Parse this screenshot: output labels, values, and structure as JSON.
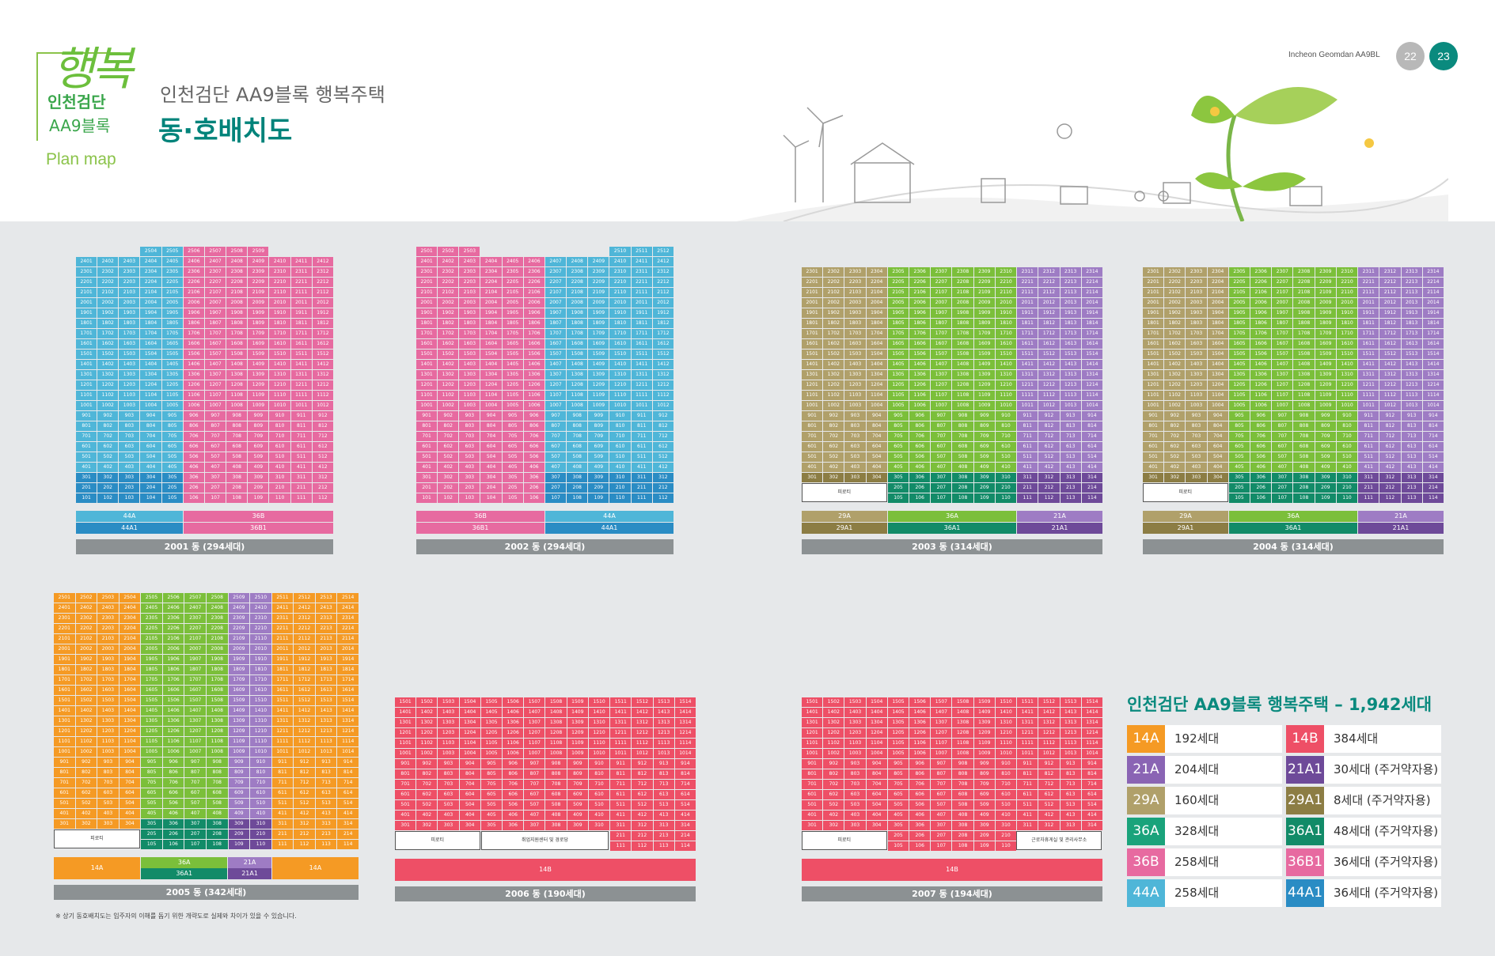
{
  "header": {
    "logo_script": "행복",
    "logo_line1": "인천검단",
    "logo_line2": "AA9블록",
    "logo_plan": "Plan map",
    "title_sub": "인천검단 AA9블록 행복주택",
    "title_main": "동·호배치도",
    "top_right_text": "Incheon Geomdan AA9BL",
    "page_left": "22",
    "page_right": "23"
  },
  "colors": {
    "14A": "#f59a24",
    "14B": "#ee4f66",
    "21A": "#8a64b4",
    "21A1": "#6e4a99",
    "29A": "#b0a06a",
    "29A1": "#8c7d44",
    "36A": "#1aa37b",
    "36A1": "#128b68",
    "36B": "#e76aa0",
    "36B1": "#e76aa0",
    "44A": "#4fb6d8",
    "44A1": "#2a8cc4"
  },
  "buildings": [
    {
      "key": "b2001",
      "label": "2001 동 (294세대)",
      "floors": [
        25,
        1
      ],
      "units": 12,
      "bars": [
        [
          {
            "t": "44A",
            "c": "c-44",
            "w": 5
          },
          {
            "t": "36B",
            "c": "c-36b",
            "w": 7
          }
        ],
        [
          {
            "t": "44A1",
            "c": "c-44b",
            "w": 5
          },
          {
            "t": "36B1",
            "c": "c-36b",
            "w": 7
          }
        ]
      ]
    },
    {
      "key": "b2002",
      "label": "2002 동 (294세대)",
      "floors": [
        25,
        1
      ],
      "units": 12,
      "bars": [
        [
          {
            "t": "36B",
            "c": "c-36b",
            "w": 6
          },
          {
            "t": "44A",
            "c": "c-44",
            "w": 6
          }
        ],
        [
          {
            "t": "36B1",
            "c": "c-36b",
            "w": 6
          },
          {
            "t": "44A1",
            "c": "c-44b",
            "w": 6
          }
        ]
      ]
    },
    {
      "key": "b2003",
      "label": "2003 동 (314세대)",
      "floors": [
        23,
        1
      ],
      "units": 14,
      "bars": [
        [
          {
            "t": "29A",
            "c": "c-29",
            "w": 4
          },
          {
            "t": "36A",
            "c": "c-36g",
            "w": 6
          },
          {
            "t": "21A",
            "c": "c-21m",
            "w": 4
          }
        ],
        [
          {
            "t": "29A1",
            "c": "c-29-d",
            "w": 4
          },
          {
            "t": "36A1",
            "c": "c-36a-d",
            "w": 6
          },
          {
            "t": "21A1",
            "c": "c-21-d",
            "w": 4
          }
        ]
      ]
    },
    {
      "key": "b2004",
      "label": "2004 동 (314세대)",
      "floors": [
        23,
        1
      ],
      "units": 14,
      "bars": [
        [
          {
            "t": "29A",
            "c": "c-29",
            "w": 4
          },
          {
            "t": "36A",
            "c": "c-36g",
            "w": 6
          },
          {
            "t": "21A",
            "c": "c-21m",
            "w": 4
          }
        ],
        [
          {
            "t": "29A1",
            "c": "c-29-d",
            "w": 4
          },
          {
            "t": "36A1",
            "c": "c-36a-d",
            "w": 6
          },
          {
            "t": "21A1",
            "c": "c-21-d",
            "w": 4
          }
        ]
      ]
    },
    {
      "key": "b2005",
      "label": "2005 동 (342세대)",
      "floors": [
        25,
        1
      ],
      "units": 14,
      "bars": [
        [
          {
            "t": "14A",
            "c": "c-14a",
            "w": 4
          },
          {
            "t": "36A",
            "c": "c-36g",
            "w": 4
          },
          {
            "t": "21A",
            "c": "c-21m",
            "w": 2
          },
          {
            "t": "14A",
            "c": "c-14a",
            "w": 4
          }
        ]
      ]
    },
    {
      "key": "b2006",
      "label": "2006 동 (190세대)",
      "floors": [
        15,
        1
      ],
      "units": 14,
      "bars": [
        [
          {
            "t": "14B",
            "c": "c-14b",
            "w": 14
          }
        ]
      ]
    },
    {
      "key": "b2007",
      "label": "2007 동 (194세대)",
      "floors": [
        15,
        1
      ],
      "units": 14,
      "bars": [
        [
          {
            "t": "14B",
            "c": "c-14b",
            "w": 14
          }
        ]
      ]
    }
  ],
  "labels": {
    "piloti": "피로티",
    "b2005_sub_36": "36A1",
    "b2005_sub_21": "21A1",
    "b2006_facility": "취업지원센터 및 경로당",
    "b2007_facility": "근로자휴게실 및 관리사무소"
  },
  "summary": {
    "title": "인천검단 AA9블록 행복주택 – 1,942세대",
    "rows": [
      {
        "type": "14A",
        "count": "192세대",
        "color": "#f59a24"
      },
      {
        "type": "14B",
        "count": "384세대",
        "color": "#ee4f66"
      },
      {
        "type": "21A",
        "count": "204세대",
        "color": "#8a64b4"
      },
      {
        "type": "21A1",
        "count": "30세대 (주거약자용)",
        "color": "#6e4a99"
      },
      {
        "type": "29A",
        "count": "160세대",
        "color": "#b0a06a"
      },
      {
        "type": "29A1",
        "count": "8세대 (주거약자용)",
        "color": "#8c7d44"
      },
      {
        "type": "36A",
        "count": "328세대",
        "color": "#1aa37b"
      },
      {
        "type": "36A1",
        "count": "48세대 (주거약자용)",
        "color": "#128b68"
      },
      {
        "type": "36B",
        "count": "258세대",
        "color": "#e76aa0"
      },
      {
        "type": "36B1",
        "count": "36세대 (주거약자용)",
        "color": "#e76aa0"
      },
      {
        "type": "44A",
        "count": "258세대",
        "color": "#4fb6d8"
      },
      {
        "type": "44A1",
        "count": "36세대 (주거약자용)",
        "color": "#2a8cc4"
      }
    ]
  },
  "footnote": "※ 상기 동호배치도는 입주자의 이해를 돕기 위한 개략도로 실제와 차이가 있을 수 있습니다."
}
